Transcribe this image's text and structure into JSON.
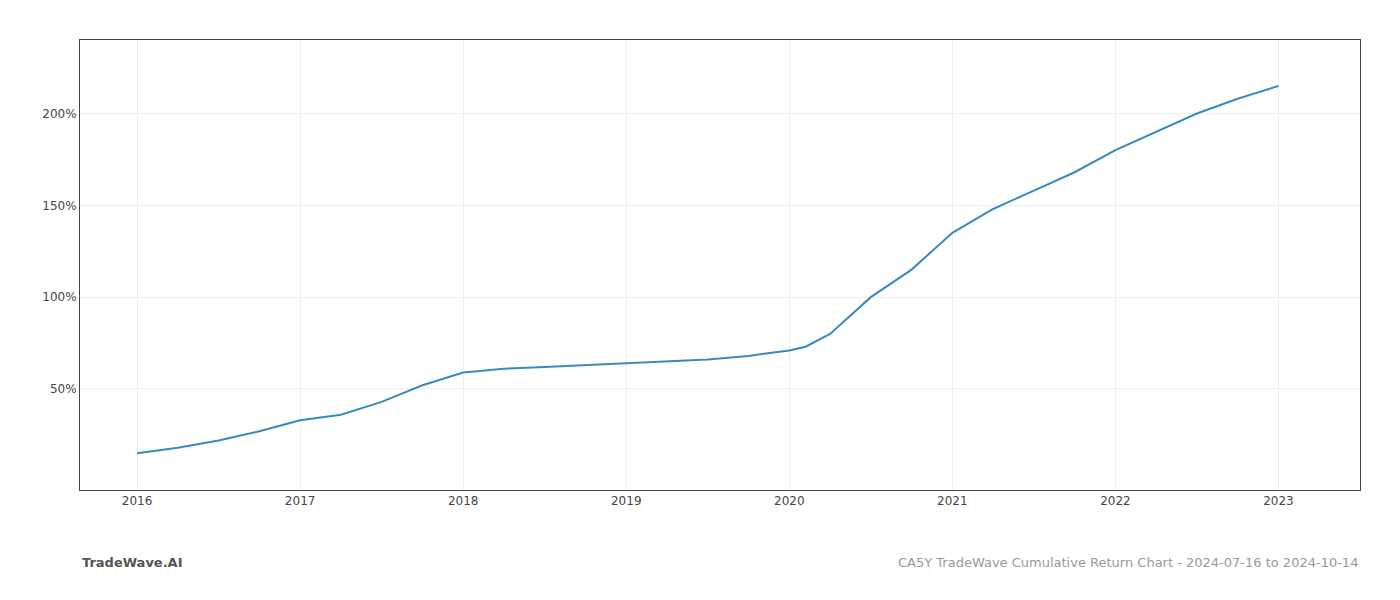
{
  "chart_data": {
    "type": "line",
    "x": [
      2016.0,
      2016.25,
      2016.5,
      2016.75,
      2017.0,
      2017.25,
      2017.5,
      2017.75,
      2018.0,
      2018.25,
      2018.5,
      2018.75,
      2019.0,
      2019.25,
      2019.5,
      2019.75,
      2020.0,
      2020.1,
      2020.25,
      2020.5,
      2020.75,
      2021.0,
      2021.25,
      2021.5,
      2021.75,
      2022.0,
      2022.25,
      2022.5,
      2022.75,
      2023.0
    ],
    "values": [
      15,
      18,
      22,
      27,
      33,
      36,
      43,
      52,
      59,
      61,
      62,
      63,
      64,
      65,
      66,
      68,
      71,
      73,
      80,
      100,
      115,
      135,
      148,
      158,
      168,
      180,
      190,
      200,
      208,
      215
    ],
    "color": "#3a8abf",
    "xlim": [
      2015.65,
      2023.5
    ],
    "xticks": [
      2016,
      2017,
      2018,
      2019,
      2020,
      2021,
      2022,
      2023
    ],
    "ylim": [
      -5,
      240
    ],
    "yticks": [
      {
        "value": 50,
        "label": "50%"
      },
      {
        "value": 100,
        "label": "100%"
      },
      {
        "value": 150,
        "label": "150%"
      },
      {
        "value": 200,
        "label": "200%"
      }
    ],
    "grid": true,
    "annotations": [
      "TradeWave.AI",
      "CA5Y TradeWave Cumulative Return Chart - 2024-07-16 to 2024-10-14"
    ]
  }
}
